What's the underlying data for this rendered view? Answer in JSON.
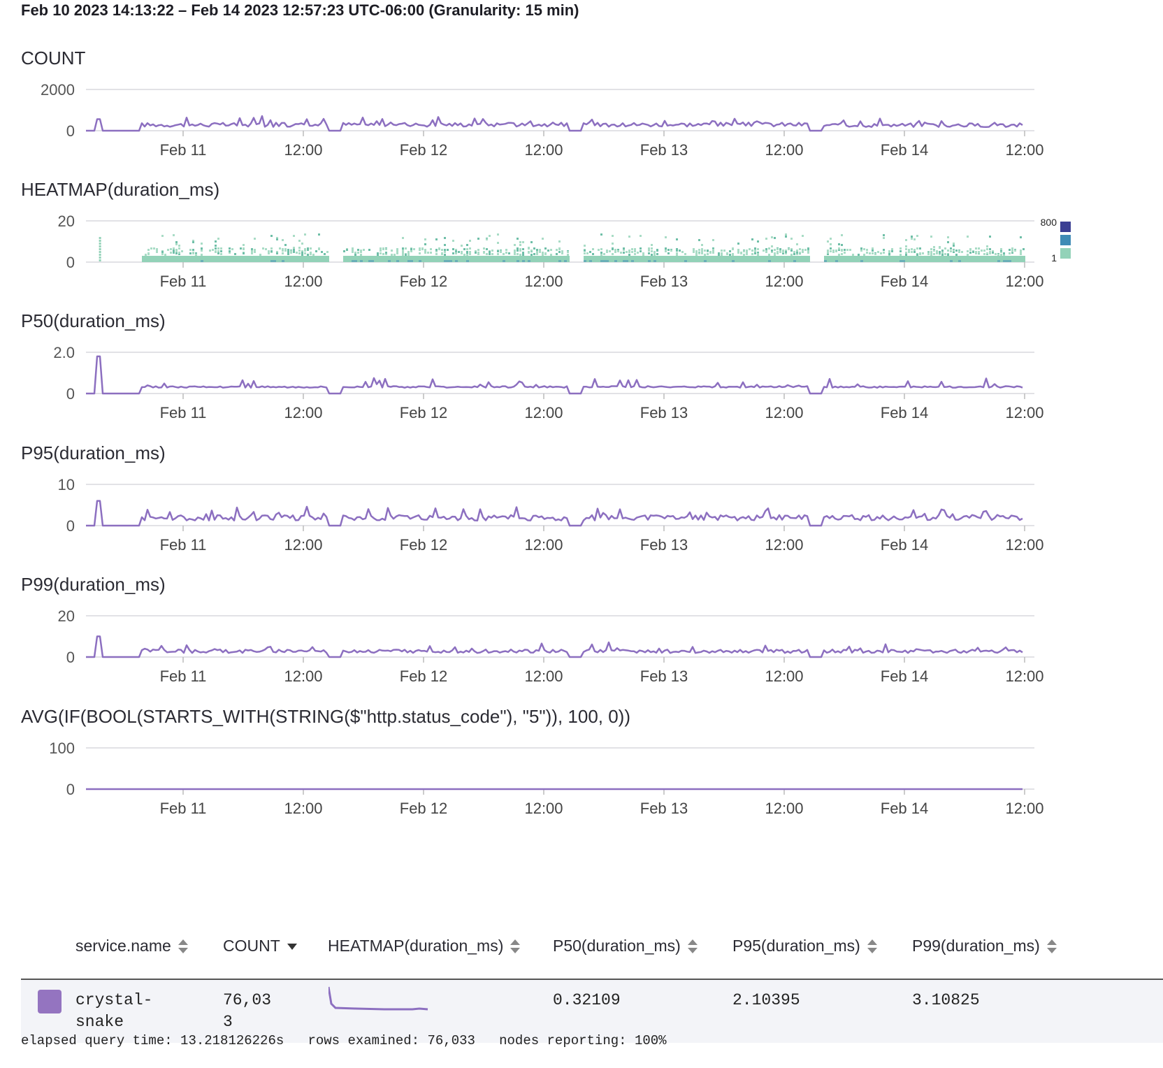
{
  "header": {
    "range_title": "Feb 10 2023 14:13:22 – Feb 14 2023 12:57:23 UTC-06:00 (Granularity: 15 min)"
  },
  "x_axis_labels": [
    "Feb 11",
    "12:00",
    "Feb 12",
    "12:00",
    "Feb 13",
    "12:00",
    "Feb 14",
    "12:00"
  ],
  "charts": [
    {
      "id": "count",
      "title": "COUNT",
      "type": "line",
      "yticks": [
        "2000",
        "0"
      ],
      "ymax": 2000,
      "bands": [
        [
          0.22,
          1,
          0.95
        ],
        [
          1.06,
          2,
          1.0
        ],
        [
          2.06,
          3,
          1.0
        ],
        [
          3.06,
          4.6,
          0.9
        ]
      ],
      "spikes": [
        [
          0.05,
          0.28
        ],
        [
          4.72,
          0.09
        ]
      ],
      "stroke": "#8c6fc0",
      "level": 300,
      "jitter": 0.35
    },
    {
      "id": "heatmap",
      "title": "HEATMAP(duration_ms)",
      "type": "heatmap",
      "yticks": [
        "20",
        "0"
      ],
      "ymax": 20,
      "legend": {
        "max_label": "800",
        "min_label": "1",
        "colors": [
          "#3b3f93",
          "#3f8bb5",
          "#93d2b8"
        ]
      }
    },
    {
      "id": "p50",
      "title": "P50(duration_ms)",
      "type": "line",
      "yticks": [
        "2.0",
        "0"
      ],
      "ymax": 2,
      "stroke": "#8c6fc0",
      "level": 0.32,
      "jitter": 0.12,
      "spikes": [
        [
          0.05,
          1.8
        ],
        [
          4.58,
          1.8
        ],
        [
          4.66,
          0.35
        ]
      ]
    },
    {
      "id": "p95",
      "title": "P95(duration_ms)",
      "type": "line",
      "yticks": [
        "10",
        "0"
      ],
      "ymax": 10,
      "stroke": "#8c6fc0",
      "level": 1.9,
      "jitter": 0.35,
      "spikes": [
        [
          0.05,
          6.0
        ],
        [
          4.58,
          5.0
        ],
        [
          4.66,
          3.0
        ]
      ]
    },
    {
      "id": "p99",
      "title": "P99(duration_ms)",
      "type": "line",
      "yticks": [
        "20",
        "0"
      ],
      "ymax": 20,
      "stroke": "#8c6fc0",
      "level": 2.8,
      "jitter": 0.3,
      "spikes": [
        [
          0.05,
          10
        ],
        [
          4.58,
          9
        ],
        [
          4.66,
          3.5
        ]
      ]
    },
    {
      "id": "errors",
      "title": "AVG(IF(BOOL(STARTS_WITH(STRING($\"http.status_code\"), \"5\")), 100, 0))",
      "type": "line",
      "yticks": [
        "100",
        "0"
      ],
      "ymax": 100,
      "stroke": "#8c6fc0",
      "level": 0,
      "jitter": 0,
      "flat": true
    }
  ],
  "table": {
    "columns": [
      {
        "label": "service.name",
        "sort": "none"
      },
      {
        "label": "COUNT",
        "sort": "desc"
      },
      {
        "label": "HEATMAP(duration_ms)",
        "sort": "none"
      },
      {
        "label": "P50(duration_ms)",
        "sort": "none"
      },
      {
        "label": "P95(duration_ms)",
        "sort": "none"
      },
      {
        "label": "P99(duration_ms)",
        "sort": "none"
      }
    ],
    "rows": [
      {
        "service_line1": "crystal-",
        "service_line2": "snake",
        "count_line1": "76,03",
        "count_line2": "3",
        "p50": "0.32109",
        "p95": "2.10395",
        "p99": "3.10825",
        "color": "#9474c0"
      }
    ]
  },
  "footer": {
    "stats": "elapsed query time: 13.218126226s   rows examined: 76,033   nodes reporting: 100%"
  }
}
